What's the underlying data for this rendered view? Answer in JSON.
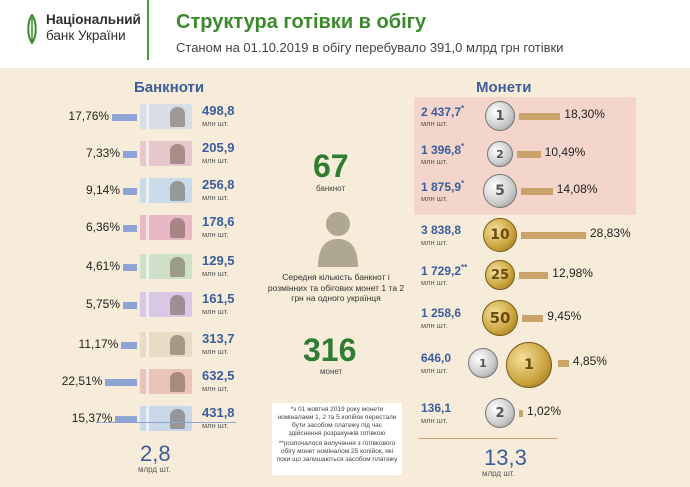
{
  "header": {
    "logo_line1": "Національний",
    "logo_line2": "банк України",
    "title": "Структура готівки в обігу",
    "subtitle": "Станом на 01.10.2019 в обігу перебувало 391,0 млрд  грн готівки"
  },
  "banknotes": {
    "title": "Банкноти",
    "unit": "млн шт.",
    "items": [
      {
        "pct": "17,76%",
        "share": 17.76,
        "count": "498,8",
        "color": "#d8dde6"
      },
      {
        "pct": "7,33%",
        "share": 7.33,
        "count": "205,9",
        "color": "#e8c7cc"
      },
      {
        "pct": "9,14%",
        "share": 9.14,
        "count": "256,8",
        "color": "#c9dbe8"
      },
      {
        "pct": "6,36%",
        "share": 6.36,
        "count": "178,6",
        "color": "#e8b8c4"
      },
      {
        "pct": "4,61%",
        "share": 4.61,
        "count": "129,5",
        "color": "#cfe0c9"
      },
      {
        "pct": "5,75%",
        "share": 5.75,
        "count": "161,5",
        "color": "#d8c8e4"
      },
      {
        "pct": "11,17%",
        "share": 11.17,
        "count": "313,7",
        "color": "#e8dcc4"
      },
      {
        "pct": "22,51%",
        "share": 22.51,
        "count": "632,5",
        "color": "#eac4b8"
      },
      {
        "pct": "15,37%",
        "share": 15.37,
        "count": "431,8",
        "color": "#c8d8e8"
      }
    ],
    "total": "2,8",
    "total_unit": "млрд шт."
  },
  "center": {
    "count_banknotes": "67",
    "count_banknotes_unit": "банкнот",
    "description": "Середня кількість банкнот і розмінних та обігових монет 1 та 2 грн на одного українця",
    "count_coins": "316",
    "count_coins_unit": "монет",
    "note1": "*з 01 жовтня 2019 року монети номіналами 1, 2 та 5 копійок перестали бути засобом платежу під час здійснення розрахунків готівкою",
    "note2": "**розпочалося вилучення з готівкового обігу монет номіналом 25 копійок, які поки що залишаються засобом платежу"
  },
  "coins": {
    "title": "Монети",
    "unit": "млн шт.",
    "items": [
      {
        "count": "2 437,7",
        "mark": "*",
        "pct": "18,30%",
        "share": 18.3,
        "face": "1",
        "metal": "silver"
      },
      {
        "count": "1 396,8",
        "mark": "*",
        "pct": "10,49%",
        "share": 10.49,
        "face": "2",
        "metal": "silver"
      },
      {
        "count": "1 875,9",
        "mark": "*",
        "pct": "14,08%",
        "share": 14.08,
        "face": "5",
        "metal": "silver"
      },
      {
        "count": "3 838,8",
        "mark": "",
        "pct": "28,83%",
        "share": 28.83,
        "face": "10",
        "metal": "gold"
      },
      {
        "count": "1 729,2",
        "mark": "**",
        "pct": "12,98%",
        "share": 12.98,
        "face": "25",
        "metal": "gold"
      },
      {
        "count": "1 258,6",
        "mark": "",
        "pct": "9,45%",
        "share": 9.45,
        "face": "50",
        "metal": "gold"
      },
      {
        "count": "646,0",
        "mark": "",
        "pct": "4,85%",
        "share": 4.85,
        "face": "1",
        "metal": "silver-gold"
      },
      {
        "count": "136,1",
        "mark": "",
        "pct": "1,02%",
        "share": 1.02,
        "face": "2",
        "metal": "silver"
      }
    ],
    "total": "13,3",
    "total_unit": "млрд шт."
  }
}
